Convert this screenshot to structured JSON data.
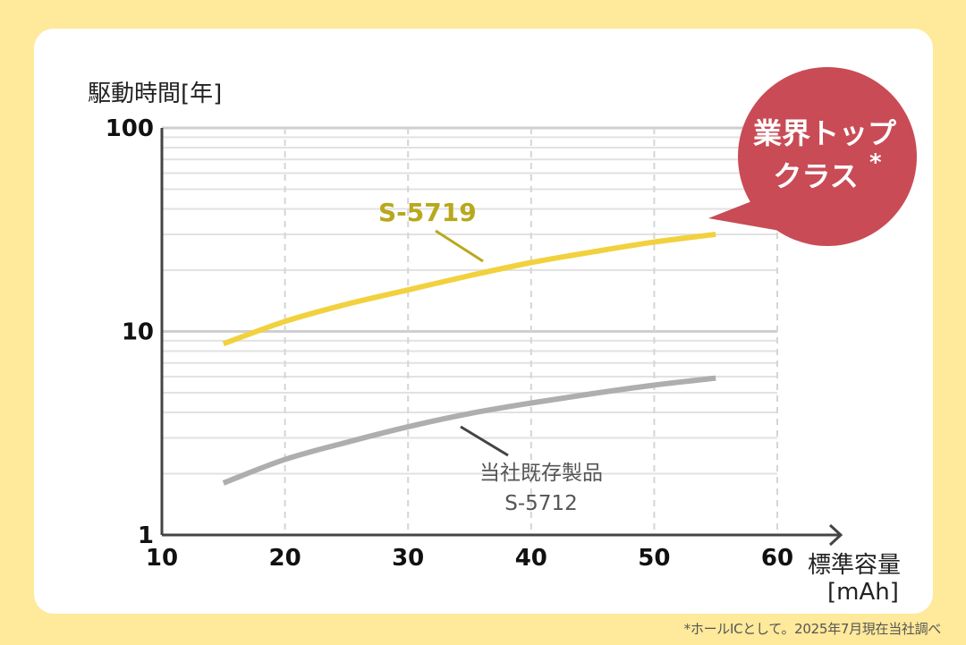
{
  "chart_data": {
    "type": "line",
    "ylabel": "駆動時間[年]",
    "xlabel": "標準容量",
    "xunit": "[mAh]",
    "x_ticks": [
      "10",
      "20",
      "30",
      "40",
      "50",
      "60"
    ],
    "y_ticks": [
      "1",
      "10",
      "100"
    ],
    "xlim": [
      10,
      60
    ],
    "ylim": [
      1,
      100
    ],
    "y_scale": "log",
    "grid": true,
    "series": [
      {
        "name": "S-5719",
        "color": "#F2D13E",
        "label_color": "#B8A81C",
        "x": [
          15,
          20,
          25,
          30,
          35,
          40,
          45,
          50,
          55
        ],
        "y": [
          8.7,
          11.2,
          13.6,
          16.0,
          18.8,
          21.8,
          24.6,
          27.5,
          30.0
        ]
      },
      {
        "name": "当社既存製品",
        "name2": "S-5712",
        "color": "#AEAEAE",
        "label_color": "#555555",
        "x": [
          15,
          20,
          25,
          30,
          35,
          40,
          45,
          50,
          55
        ],
        "y": [
          1.8,
          2.35,
          2.85,
          3.4,
          3.95,
          4.45,
          4.95,
          5.45,
          5.9
        ]
      }
    ]
  },
  "callout": {
    "line1": "業界トップ",
    "line2": "クラス",
    "mark": "*",
    "color": "#C94B56"
  },
  "footnote": "*ホールICとして。2025年7月現在当社調べ"
}
